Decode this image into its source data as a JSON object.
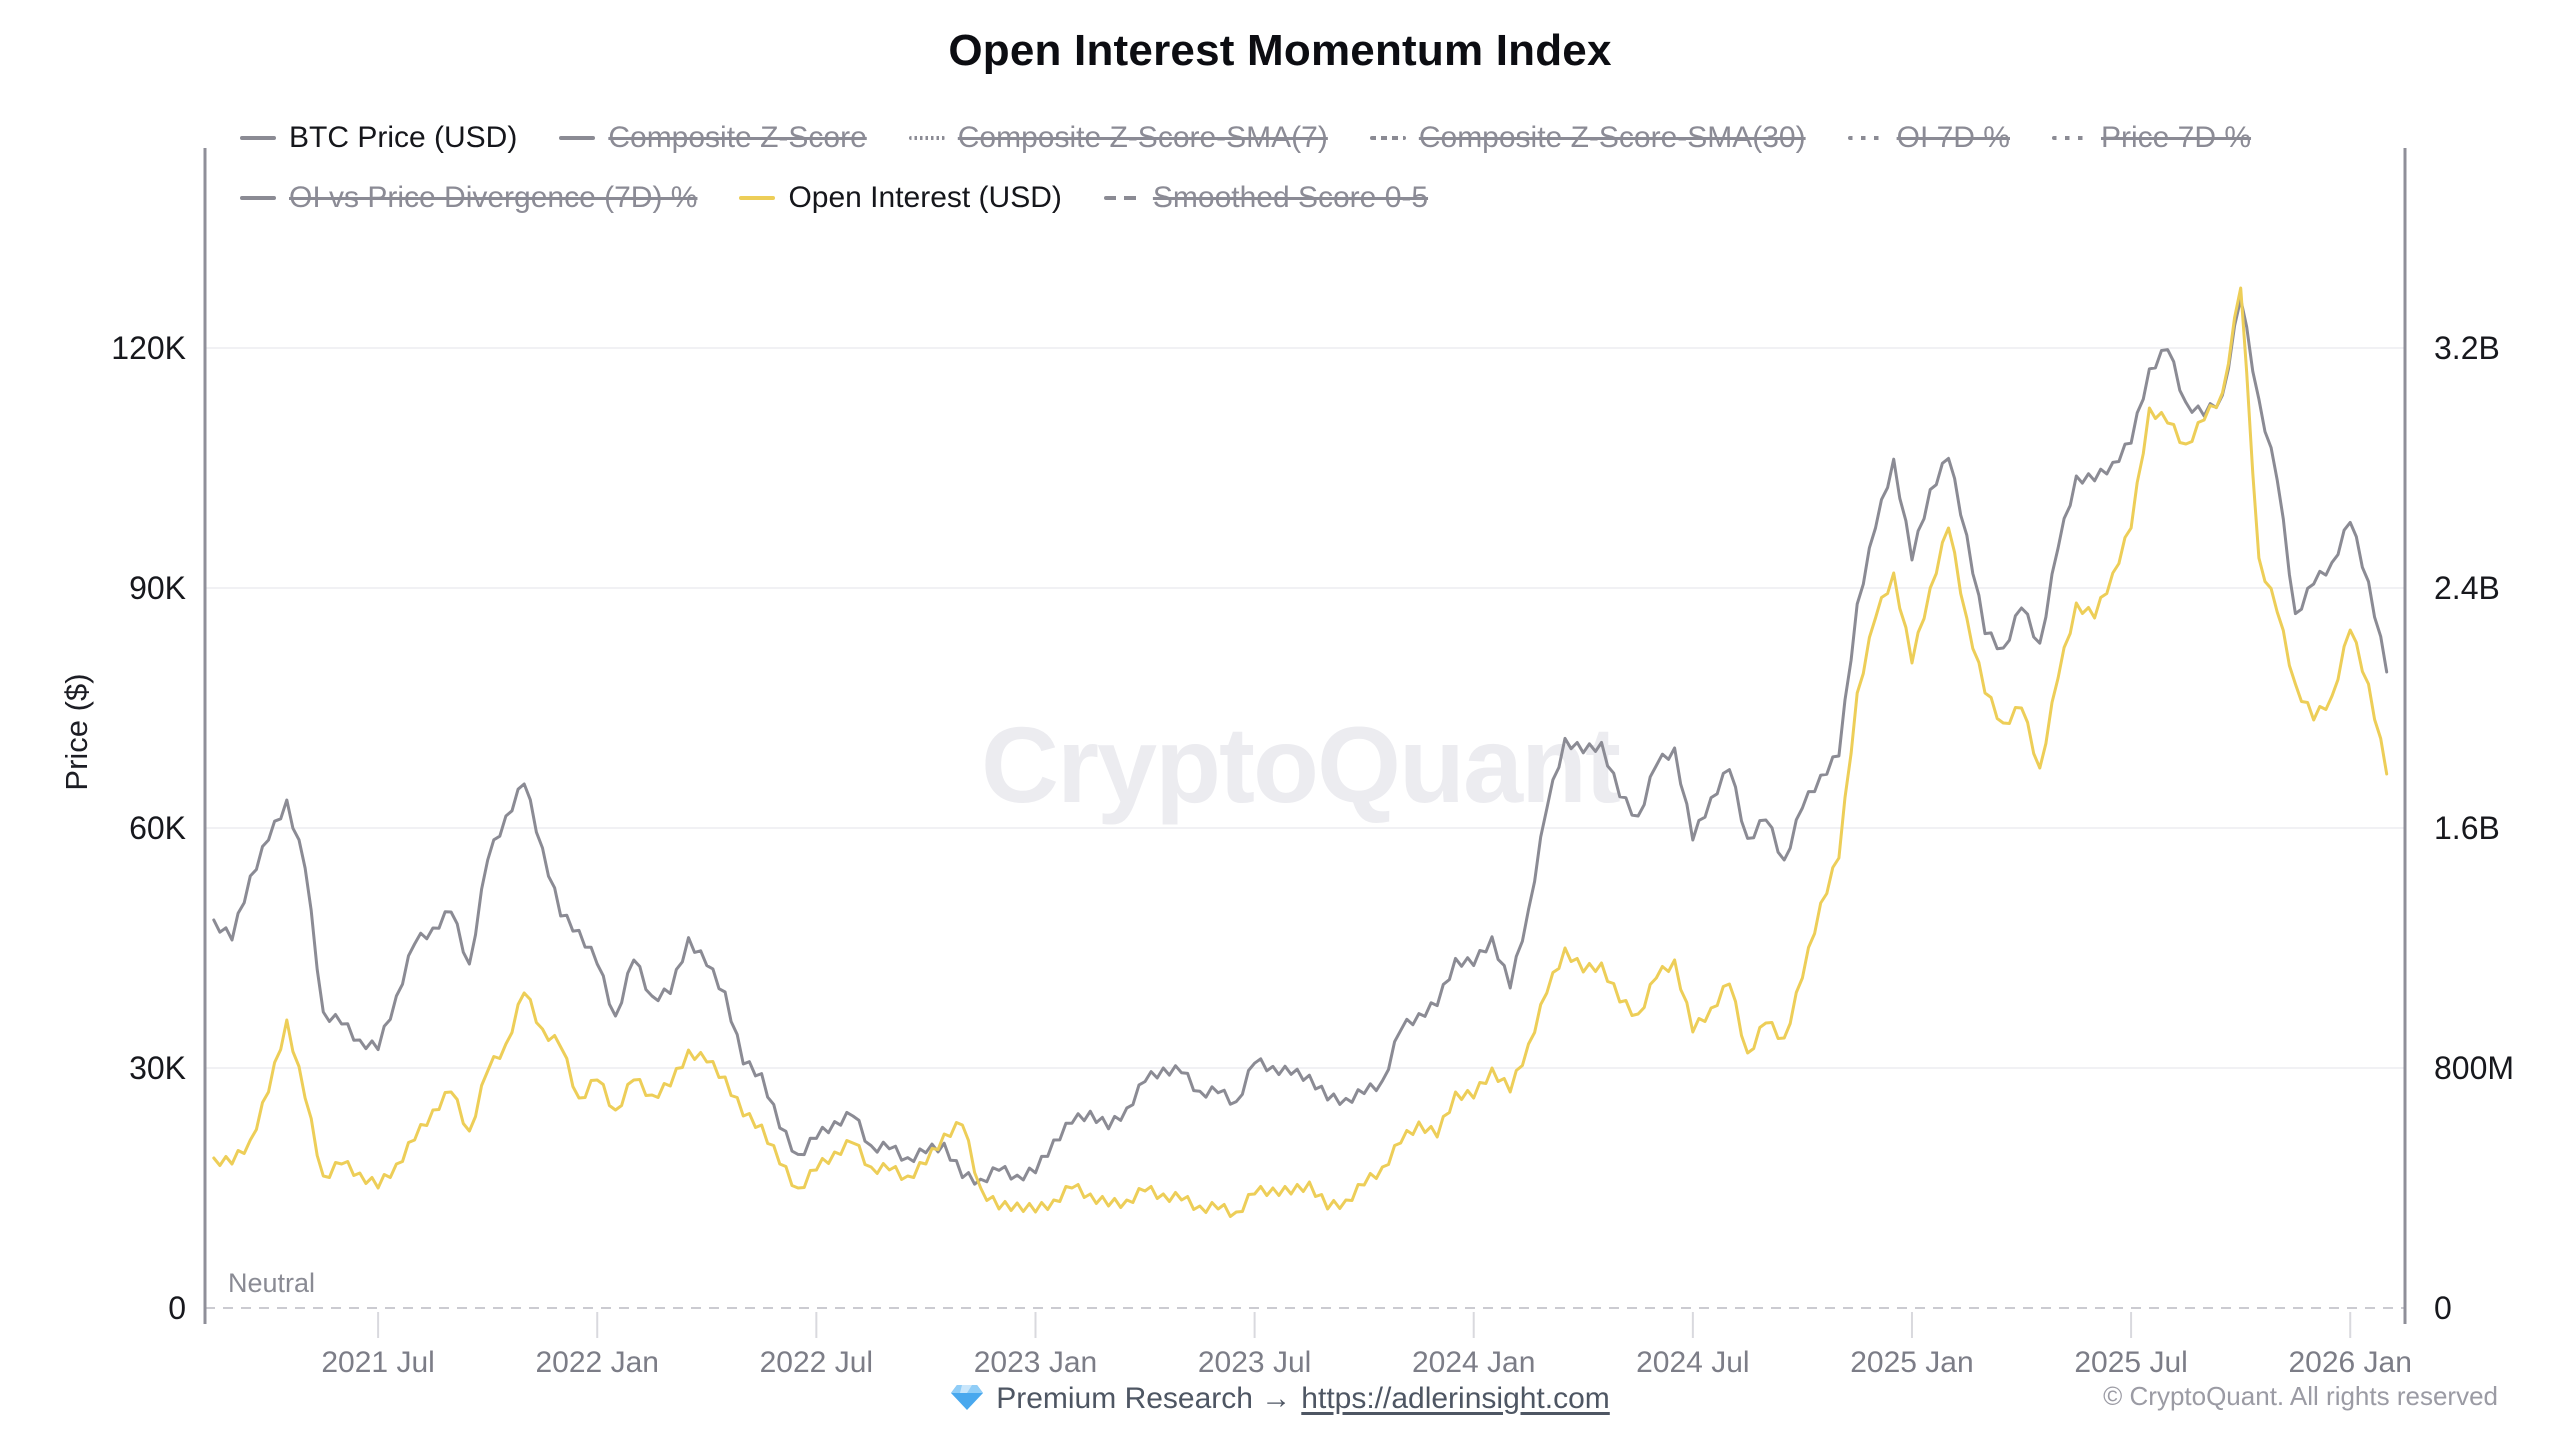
{
  "page": {
    "title": "Open Interest Momentum Index",
    "watermark": "CryptoQuant",
    "footer": {
      "premium_text": "Premium Research →",
      "link_text": "https://adlerinsight.com",
      "link_href": "https://adlerinsight.com",
      "copyright": "© CryptoQuant. All rights reserved",
      "gem_icon": "gem-icon"
    }
  },
  "colors": {
    "btc_line": "#8b8b94",
    "oi_line": "#edce58",
    "axis_border": "#8f8f99",
    "gridline": "#f1f1f4",
    "neutral_dash": "#cbcbd1",
    "x_tick_text": "#7c7d87",
    "y_tick_text": "#17181d",
    "tick_mark": "#d9d9de",
    "watermark": "#ececf0",
    "legend_off": "#8b8b95"
  },
  "legend": {
    "items": [
      {
        "label": "BTC Price (USD)",
        "style": "solid",
        "color": "#8b8b94",
        "active": true
      },
      {
        "label": "Composite Z-Score",
        "style": "solid",
        "color": "#8b8b94",
        "active": false
      },
      {
        "label": "Composite Z-Score-SMA(7)",
        "style": "dotted-fine",
        "color": "#8b8b94",
        "active": false
      },
      {
        "label": "Composite Z-Score-SMA(30)",
        "style": "dashed",
        "color": "#8b8b94",
        "active": false
      },
      {
        "label": "OI 7D %",
        "style": "dots",
        "color": "#8b8b94",
        "active": false
      },
      {
        "label": "Price 7D %",
        "style": "dots",
        "color": "#8b8b94",
        "active": false
      },
      {
        "label": "OI vs Price Divergence (7D) %",
        "style": "solid",
        "color": "#8b8b94",
        "active": false
      },
      {
        "label": "Open Interest (USD)",
        "style": "solid",
        "color": "#edce58",
        "active": true
      },
      {
        "label": "Smoothed Score 0-5",
        "style": "dash2",
        "color": "#8b8b94",
        "active": false
      }
    ]
  },
  "chart_data": {
    "type": "line",
    "title": "Open Interest Momentum Index",
    "legend_position": "top",
    "grid": "horizontal-faint",
    "x_axis": {
      "min": 2021.105,
      "max": 2026.125,
      "ticks": [
        {
          "v": 2021.5,
          "label": "2021 Jul"
        },
        {
          "v": 2022.0,
          "label": "2022 Jan"
        },
        {
          "v": 2022.5,
          "label": "2022 Jul"
        },
        {
          "v": 2023.0,
          "label": "2023 Jan"
        },
        {
          "v": 2023.5,
          "label": "2023 Jul"
        },
        {
          "v": 2024.0,
          "label": "2024 Jan"
        },
        {
          "v": 2024.5,
          "label": "2024 Jul"
        },
        {
          "v": 2025.0,
          "label": "2025 Jan"
        },
        {
          "v": 2025.5,
          "label": "2025 Jul"
        },
        {
          "v": 2026.0,
          "label": "2026 Jan"
        }
      ]
    },
    "y_axis_left": {
      "title": "Price ($)",
      "unit": "thousand USD",
      "min": 0,
      "max": 145,
      "ticks": [
        {
          "v": 0,
          "label": "0"
        },
        {
          "v": 30,
          "label": "30K"
        },
        {
          "v": 60,
          "label": "60K"
        },
        {
          "v": 90,
          "label": "90K"
        },
        {
          "v": 120,
          "label": "120K"
        }
      ]
    },
    "y_axis_right": {
      "title": "Open Interest (USD)",
      "unit": "billion USD",
      "min": 0,
      "max": 3.87,
      "ticks": [
        {
          "v": 0,
          "label": "0"
        },
        {
          "v": 0.8,
          "label": "800M"
        },
        {
          "v": 1.6,
          "label": "1.6B"
        },
        {
          "v": 2.4,
          "label": "2.4B"
        },
        {
          "v": 3.2,
          "label": "3.2B"
        }
      ]
    },
    "annotations": {
      "neutral_line": {
        "label": "Neutral",
        "value": 0,
        "style": "dashed"
      }
    },
    "sampling": {
      "t_start": 2021.125,
      "t_step": 0.0416667,
      "t_unit": "decimal year, semi-monthly"
    },
    "series": [
      {
        "name": "BTC Price (USD)",
        "axis": "left",
        "color": "#8b8b94",
        "values_unit": "thousand USD",
        "values": [
          48.5,
          46,
          54,
          58.5,
          63.5,
          55,
          37,
          35.5,
          33.5,
          32.3,
          39,
          45.5,
          47.5,
          49.5,
          43,
          56,
          61.5,
          65.5,
          57.5,
          49,
          47.2,
          43,
          36.5,
          43.5,
          39,
          39.3,
          46.3,
          42.8,
          39.5,
          30.5,
          29.3,
          22.5,
          19.2,
          21.2,
          23.3,
          24,
          20.3,
          19.9,
          18.8,
          19.4,
          20.6,
          16.3,
          16.1,
          17.2,
          16.6,
          16.9,
          21,
          23.1,
          24.6,
          22.4,
          25,
          28.3,
          30,
          29.4,
          27.1,
          26.9,
          25.8,
          30.6,
          30.2,
          29.2,
          29.1,
          26,
          26.2,
          26.8,
          28.4,
          34.7,
          36.8,
          37.8,
          43.7,
          42.8,
          46.4,
          40,
          49.8,
          62.4,
          71.2,
          69.4,
          70.7,
          63.9,
          61.5,
          67.8,
          70,
          58.5,
          63.8,
          67.3,
          58.7,
          61,
          56,
          62.5,
          66.6,
          69,
          88,
          97.5,
          106.1,
          93.5,
          102.3,
          106.2,
          96.6,
          84.3,
          82.5,
          87.5,
          83.1,
          95,
          104,
          103.4,
          105.7,
          108.1,
          117.4,
          119.8,
          113.2,
          111.5,
          114.1,
          126.1,
          113.6,
          103.5,
          86.8,
          90.5,
          93.2,
          98.2,
          90.8,
          79.5
        ]
      },
      {
        "name": "Open Interest (USD)",
        "axis": "right",
        "color": "#edce58",
        "values_unit": "billion USD",
        "values": [
          0.5,
          0.48,
          0.56,
          0.72,
          0.96,
          0.7,
          0.44,
          0.48,
          0.45,
          0.4,
          0.48,
          0.56,
          0.66,
          0.72,
          0.59,
          0.79,
          0.88,
          1.05,
          0.93,
          0.87,
          0.7,
          0.76,
          0.66,
          0.76,
          0.71,
          0.74,
          0.86,
          0.82,
          0.77,
          0.64,
          0.61,
          0.48,
          0.4,
          0.46,
          0.52,
          0.55,
          0.47,
          0.46,
          0.44,
          0.48,
          0.58,
          0.61,
          0.4,
          0.33,
          0.35,
          0.32,
          0.36,
          0.4,
          0.38,
          0.34,
          0.36,
          0.39,
          0.38,
          0.36,
          0.34,
          0.33,
          0.32,
          0.38,
          0.4,
          0.38,
          0.42,
          0.33,
          0.36,
          0.41,
          0.47,
          0.55,
          0.62,
          0.57,
          0.72,
          0.7,
          0.8,
          0.72,
          0.88,
          1.05,
          1.2,
          1.12,
          1.15,
          1.02,
          0.98,
          1.1,
          1.16,
          0.92,
          1.0,
          1.08,
          0.85,
          0.95,
          0.9,
          1.1,
          1.35,
          1.5,
          2.05,
          2.3,
          2.45,
          2.15,
          2.4,
          2.6,
          2.3,
          2.05,
          1.95,
          2.0,
          1.8,
          2.1,
          2.35,
          2.3,
          2.45,
          2.6,
          3.0,
          2.95,
          2.88,
          2.96,
          3.05,
          3.4,
          2.5,
          2.32,
          2.08,
          1.96,
          2.04,
          2.26,
          2.08,
          1.78
        ]
      }
    ]
  }
}
